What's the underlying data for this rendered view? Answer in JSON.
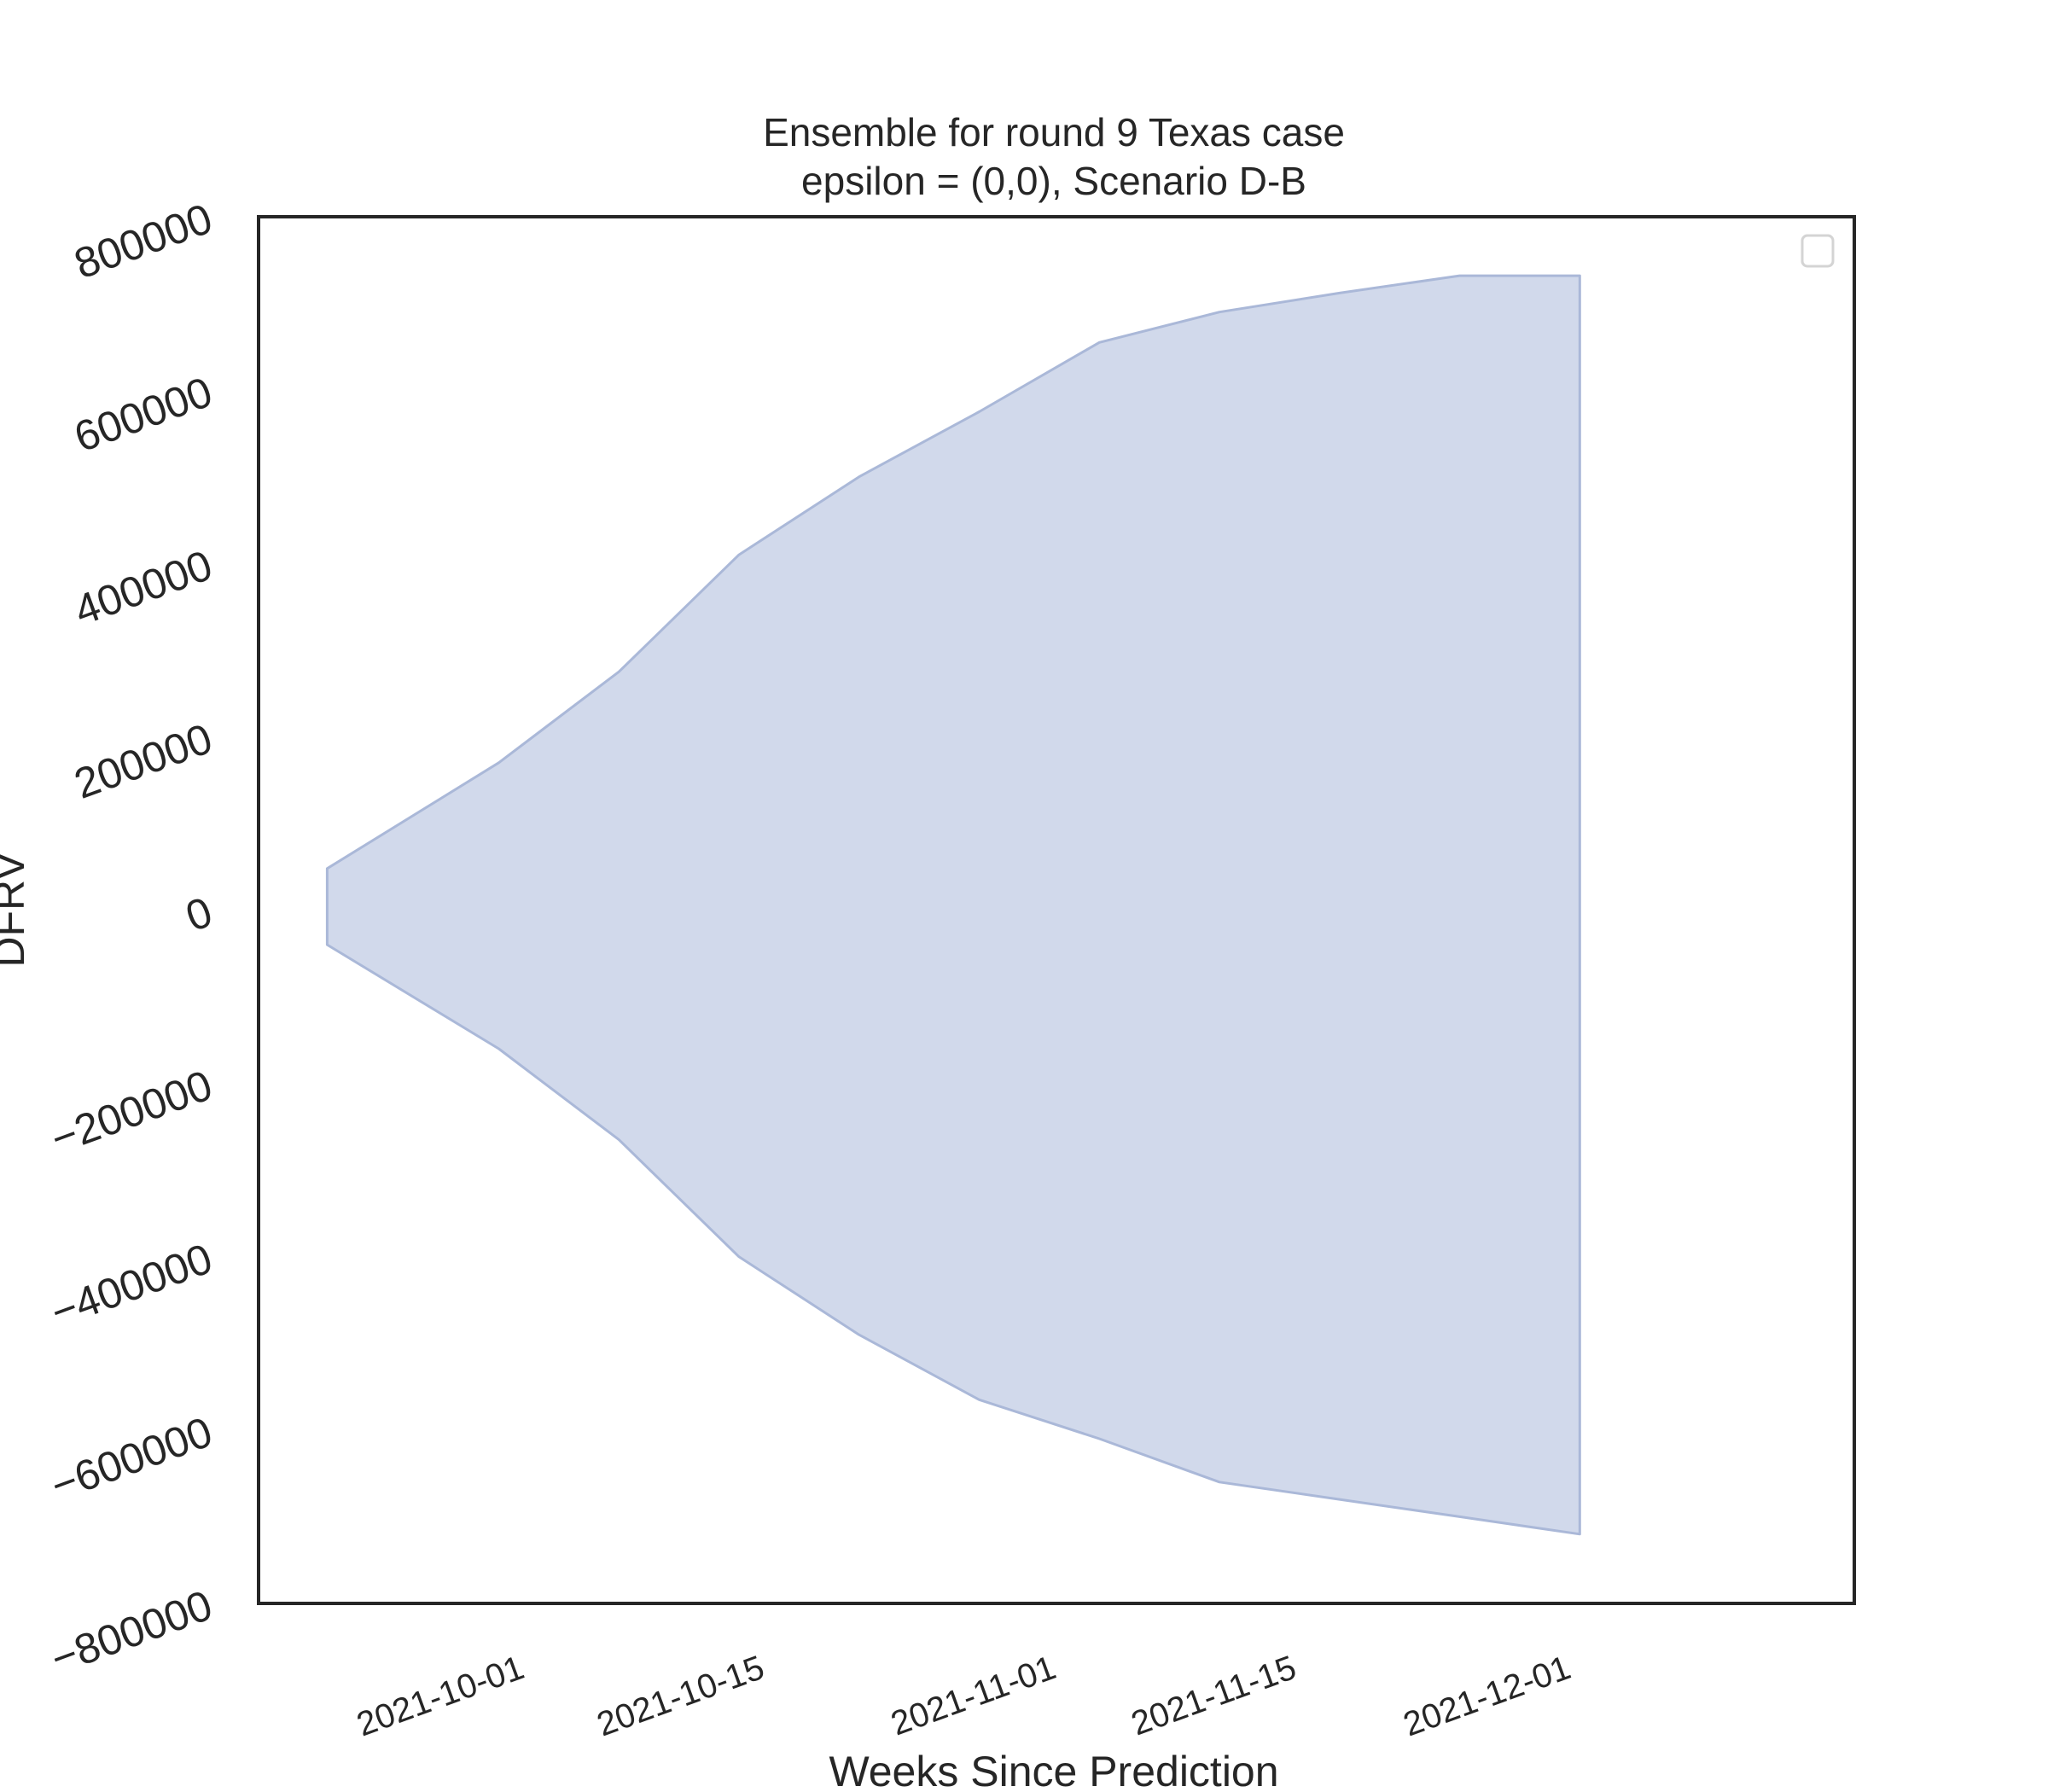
{
  "chart_data": {
    "type": "area",
    "title": "Ensemble for round 9 Texas case",
    "subtitle": "epsilon = (0,0), Scenario D-B",
    "xlabel": "Weeks Since Prediction",
    "ylabel": "DFRV",
    "ylim": [
      -800000,
      800000
    ],
    "yticks": [
      -800000,
      -600000,
      -400000,
      -200000,
      0,
      200000,
      400000,
      600000,
      800000
    ],
    "ytick_labels": [
      "−800000",
      "−600000",
      "−400000",
      "−200000",
      "0",
      "200000",
      "400000",
      "600000",
      "800000"
    ],
    "xlim": [
      "2021-09-16",
      "2021-12-18"
    ],
    "xtick_labels": [
      "2021-10-01",
      "2021-10-15",
      "2021-11-01",
      "2021-11-15",
      "2021-12-01"
    ],
    "grid": false,
    "legend": "top-right (empty)",
    "fill_color": "#c5d0e6",
    "edge_color": "#aab8d8",
    "series": [
      {
        "x": [
          "2021-09-20",
          "2021-09-30",
          "2021-10-07",
          "2021-10-14",
          "2021-10-21",
          "2021-10-28",
          "2021-11-04",
          "2021-11-11",
          "2021-11-18",
          "2021-11-25",
          "2021-12-02"
        ],
        "upper": [
          48000,
          170000,
          275000,
          410000,
          500000,
          575000,
          655000,
          690000,
          712000,
          732000,
          732000
        ],
        "lower": [
          -40000,
          -160000,
          -265000,
          -400000,
          -490000,
          -565000,
          -610000,
          -660000,
          -680000,
          -700000,
          -720000
        ]
      }
    ]
  }
}
